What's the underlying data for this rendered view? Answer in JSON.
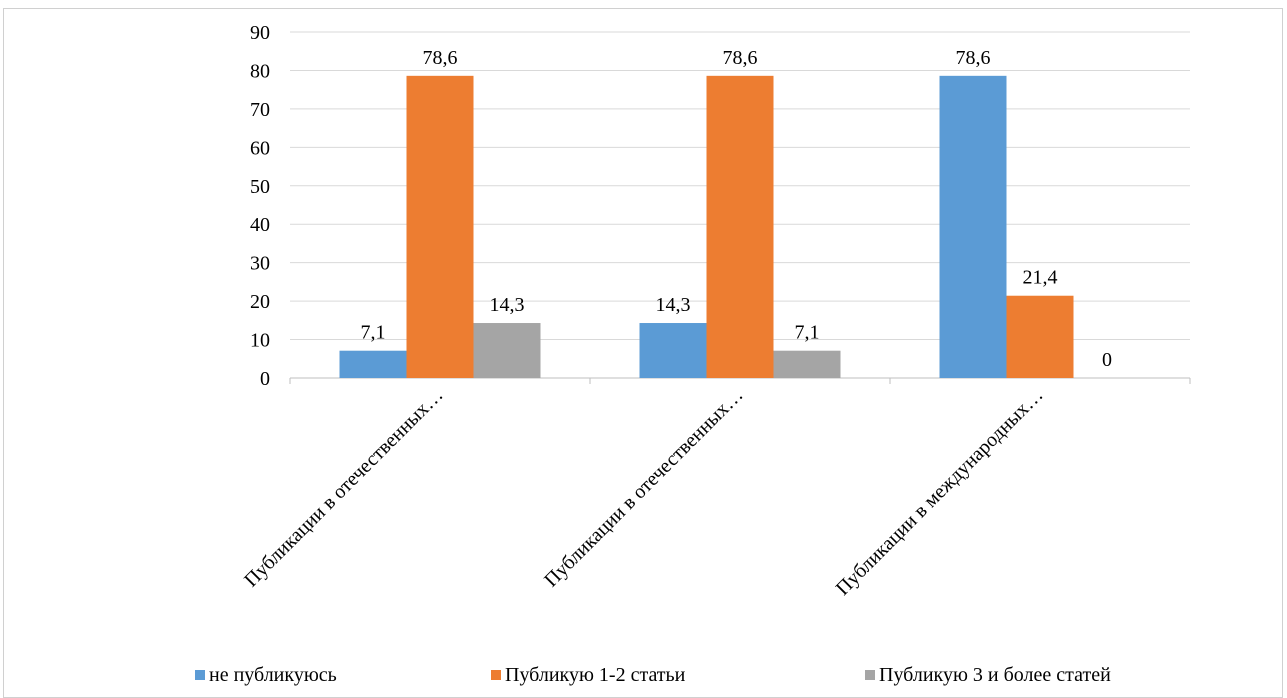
{
  "chart_data": {
    "type": "bar",
    "title": "",
    "xlabel": "",
    "ylabel": "",
    "ylim": [
      0,
      90
    ],
    "yticks": [
      "0",
      "10",
      "20",
      "30",
      "40",
      "50",
      "60",
      "70",
      "80",
      "90"
    ],
    "ytick_values": [
      0,
      10,
      20,
      30,
      40,
      50,
      60,
      70,
      80,
      90
    ],
    "grid": true,
    "legend_position": "bottom",
    "categories": [
      "Публикации в отечественных…",
      "Публикации в отечественных…",
      "Публикации в международных…"
    ],
    "series": [
      {
        "name": "не публикуюсь",
        "color": "#5b9bd5",
        "values": [
          7.1,
          14.3,
          78.6
        ],
        "labels": [
          "7,1",
          "14,3",
          "78,6"
        ]
      },
      {
        "name": "Публикую 1-2 статьи",
        "color": "#ed7d31",
        "values": [
          78.6,
          78.6,
          21.4
        ],
        "labels": [
          "78,6",
          "78,6",
          "21,4"
        ]
      },
      {
        "name": "Публикую 3 и более статей",
        "color": "#a5a5a5",
        "values": [
          14.3,
          7.1,
          0
        ],
        "labels": [
          "14,3",
          "7,1",
          "0"
        ]
      }
    ]
  }
}
